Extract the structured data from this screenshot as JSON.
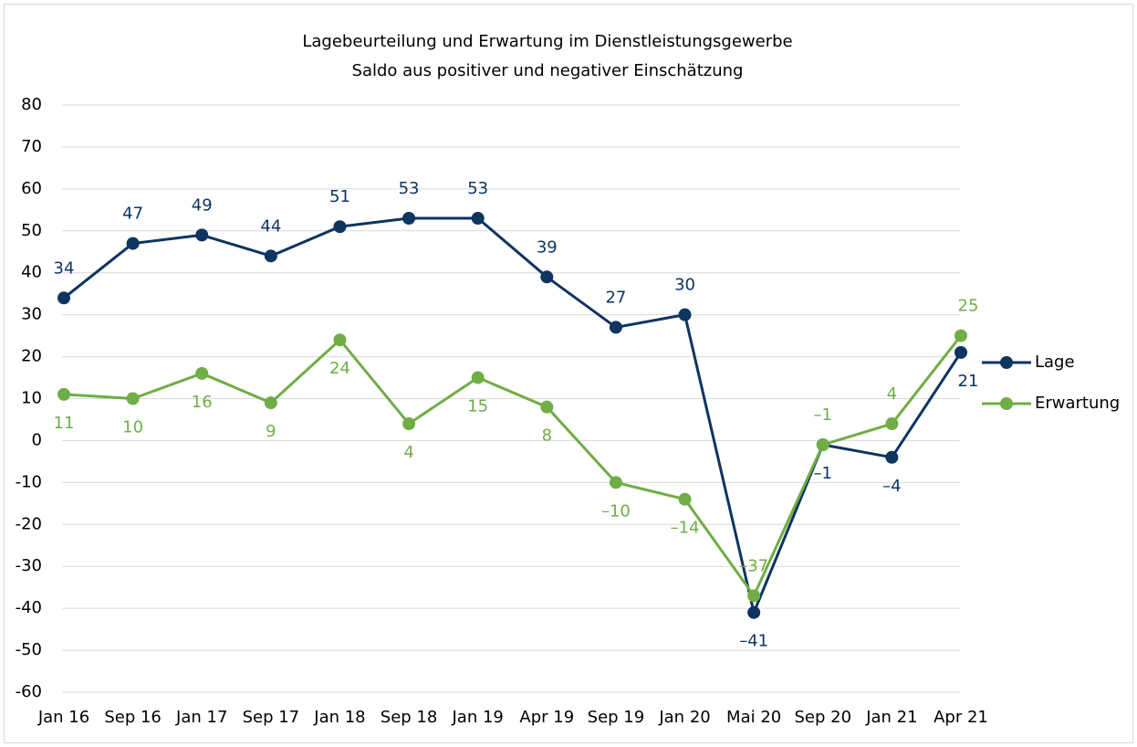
{
  "chart_data": {
    "type": "line",
    "title": "Lagebeurteilung und Erwartung im Dienstleistungsgewerbe",
    "subtitle": "Saldo aus positiver und negativer Einschätzung",
    "categories": [
      "Jan 16",
      "Sep 16",
      "Jan 17",
      "Sep 17",
      "Jan 18",
      "Sep 18",
      "Jan 19",
      "Apr 19",
      "Sep 19",
      "Jan 20",
      "Mai 20",
      "Sep 20",
      "Jan 21",
      "Apr 21"
    ],
    "series": [
      {
        "name": "Lage",
        "color": "#0e3460",
        "values": [
          34,
          47,
          49,
          44,
          51,
          53,
          53,
          39,
          27,
          30,
          -41,
          -1,
          -4,
          21
        ],
        "value_labels": [
          "34",
          "47",
          "49",
          "44",
          "51",
          "53",
          "53",
          "39",
          "27",
          "30",
          "–41",
          "–1",
          "–4",
          "21"
        ]
      },
      {
        "name": "Erwartung",
        "color": "#70ad47",
        "values": [
          11,
          10,
          16,
          9,
          24,
          4,
          15,
          8,
          -10,
          -14,
          -37,
          -1,
          4,
          25
        ],
        "value_labels": [
          "11",
          "10",
          "16",
          "9",
          "24",
          "4",
          "15",
          "8",
          "–10",
          "–14",
          "–37",
          "–1",
          "4",
          "25"
        ]
      }
    ],
    "ylim": [
      -60,
      80
    ],
    "yticks": [
      -60,
      -50,
      -40,
      -30,
      -20,
      -10,
      0,
      10,
      20,
      30,
      40,
      50,
      60,
      70,
      80
    ],
    "grid": true,
    "legend": "right"
  }
}
